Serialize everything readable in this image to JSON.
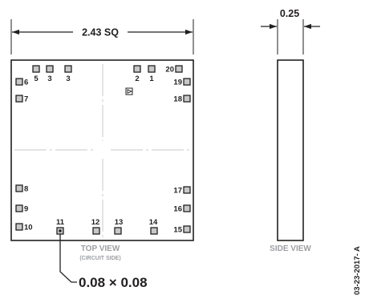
{
  "top_view": {
    "width_dimension": "2.43 SQ",
    "view_label": "TOP VIEW",
    "view_sublabel": "(CIRCUIT SIDE)",
    "pad_dimension": "0.08 × 0.08",
    "pins": {
      "p5": "5",
      "p3a": "3",
      "p3b": "3",
      "p2": "2",
      "p1": "1",
      "p20": "20",
      "p6": "6",
      "p7": "7",
      "p19": "19",
      "p18": "18",
      "p8": "8",
      "p9": "9",
      "p10": "10",
      "p17": "17",
      "p16": "16",
      "p15": "15",
      "p11": "11",
      "p12": "12",
      "p13": "13",
      "p14": "14"
    }
  },
  "side_view": {
    "thickness_dimension": "0.25",
    "view_label": "SIDE VIEW"
  },
  "drawing_code": "03-23-2017- A",
  "colors": {
    "outline": "#231f20",
    "pad_fill": "#c7c8ca",
    "label_gray": "#9d9fa2"
  }
}
